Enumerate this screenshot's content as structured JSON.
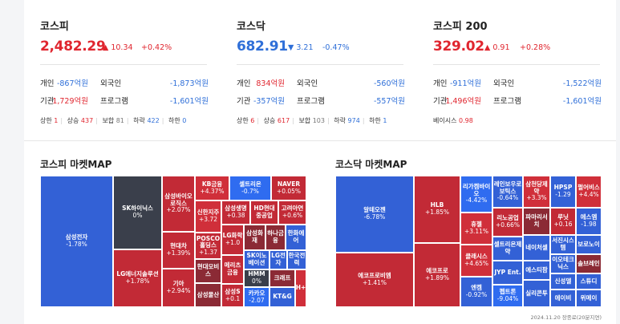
{
  "cards": [
    {
      "name": "코스피",
      "value": "2,482.29",
      "dir": "up",
      "arrow": "▲",
      "change": "10.34",
      "rate": "+0.42%",
      "rows": [
        {
          "l1": "개인",
          "v1": "-867억원",
          "c1": "dn",
          "l2": "외국인",
          "v2": "-1,873억원",
          "c2": "dn"
        },
        {
          "l1": "기관",
          "v1": "1,729억원",
          "c1": "up",
          "l2": "프로그램",
          "v2": "-1,601억원",
          "c2": "dn"
        }
      ],
      "foot": [
        {
          "label": "상한",
          "value": "1",
          "c": "up"
        },
        {
          "label": "상승",
          "value": "437",
          "c": "up"
        },
        {
          "label": "보합",
          "value": "81",
          "c": "gr"
        },
        {
          "label": "하락",
          "value": "422",
          "c": "dn"
        },
        {
          "label": "하한",
          "value": "0",
          "c": "dn"
        }
      ]
    },
    {
      "name": "코스닥",
      "value": "682.91",
      "dir": "dn",
      "arrow": "▼",
      "change": "3.21",
      "rate": "-0.47%",
      "rows": [
        {
          "l1": "개인",
          "v1": "834억원",
          "c1": "up",
          "l2": "외국인",
          "v2": "-560억원",
          "c2": "dn"
        },
        {
          "l1": "기관",
          "v1": "-357억원",
          "c1": "dn",
          "l2": "프로그램",
          "v2": "-557억원",
          "c2": "dn"
        }
      ],
      "foot": [
        {
          "label": "상한",
          "value": "6",
          "c": "up"
        },
        {
          "label": "상승",
          "value": "617",
          "c": "up"
        },
        {
          "label": "보합",
          "value": "103",
          "c": "gr"
        },
        {
          "label": "하락",
          "value": "974",
          "c": "dn"
        },
        {
          "label": "하한",
          "value": "1",
          "c": "dn"
        }
      ]
    },
    {
      "name": "코스피 200",
      "value": "329.02",
      "dir": "up",
      "arrow": "▲",
      "change": "0.91",
      "rate": "+0.28%",
      "rows": [
        {
          "l1": "개인",
          "v1": "-911억원",
          "c1": "dn",
          "l2": "외국인",
          "v2": "-1,522억원",
          "c2": "dn"
        },
        {
          "l1": "기관",
          "v1": "1,496억원",
          "c1": "up",
          "l2": "프로그램",
          "v2": "-1,601억원",
          "c2": "dn"
        }
      ],
      "foot": [
        {
          "label": "베이시스",
          "value": "0.98",
          "c": "up"
        }
      ]
    }
  ],
  "maps": [
    {
      "title": "코스피 마켓MAP"
    },
    {
      "title": "코스닥 마켓MAP"
    }
  ],
  "colors": {
    "up": "#e0262f",
    "dn": "#2f6fd8",
    "gr": "#777777",
    "red": "#c22a36",
    "red2": "#d02f3a",
    "dark": "#3a3f4b",
    "blue": "#3361d6",
    "blue2": "#2f6cf0",
    "maroon": "#8b2a35"
  },
  "timestamp": "2024.11.20 장종료(20분지연)"
}
